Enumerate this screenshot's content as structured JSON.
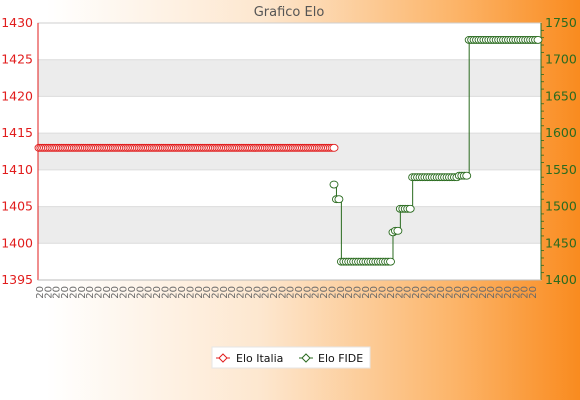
{
  "chart_data": {
    "type": "line",
    "title": "Grafico Elo",
    "xlabel": "",
    "ylabel": "",
    "y_left": {
      "range": [
        1395,
        1430
      ],
      "ticks": [
        1395,
        1400,
        1405,
        1410,
        1415,
        1420,
        1425,
        1430
      ],
      "color": "#e11d1d"
    },
    "y_right": {
      "range": [
        1400,
        1750
      ],
      "ticks": [
        1400,
        1450,
        1500,
        1550,
        1600,
        1650,
        1700,
        1750
      ],
      "color": "#2a6b1f"
    },
    "x_count": 60,
    "x_tick_prefix": "20",
    "grid": true,
    "legend_position": "bottom",
    "series": [
      {
        "name": "Elo Italia",
        "axis": "left",
        "color": "#e11d1d",
        "values": [
          1413,
          1413,
          1413,
          1413,
          1413,
          1413,
          1413,
          1413,
          1413,
          1413,
          1413,
          1413,
          1413,
          1413,
          1413,
          1413,
          1413,
          1413,
          1413,
          1413,
          1413,
          1413,
          1413,
          1413,
          1413,
          1413,
          1413,
          1413,
          1413,
          1413,
          1413,
          1413,
          1413,
          1413,
          1413,
          1413,
          1413,
          1413,
          1413,
          1413,
          1413,
          1413,
          1413,
          1413,
          1413,
          1413,
          1413,
          1413,
          1413,
          1413,
          1413,
          1413,
          1413,
          1413,
          1413,
          1413,
          1413,
          1413,
          1413,
          1413,
          1413,
          1413,
          1413,
          1413,
          1413,
          1413,
          1413,
          1413,
          1413,
          1413,
          1413,
          1413,
          1413,
          1413,
          1413,
          1413,
          1413,
          1413,
          1413,
          1413,
          1413,
          1413,
          1413,
          1413,
          1413,
          1413,
          1413,
          1413,
          1413,
          1413,
          1413,
          1413,
          1413,
          1413,
          1413,
          1413,
          1413,
          1413,
          1413,
          1413,
          1413,
          1413,
          1413,
          1413,
          1413,
          1413,
          1413,
          1413,
          1413,
          1413,
          1413,
          1413,
          1413,
          1413,
          1413,
          1413,
          1413,
          1413,
          1413,
          1413,
          1413,
          1413,
          1413,
          1413,
          1413,
          1413,
          1413,
          1413,
          1413,
          1413,
          1413,
          1413,
          1413,
          1413,
          1413,
          1413,
          1413,
          1413,
          1413,
          1413,
          1413,
          1413,
          1413,
          1413,
          1413,
          1413,
          1413,
          1413,
          1413,
          1413,
          1413,
          1413,
          1413,
          1413,
          1413,
          1413,
          1413,
          1413,
          1413,
          1413
        ]
      },
      {
        "name": "Elo FIDE",
        "axis": "right",
        "color": "#2a6b1f",
        "values": [
          1530,
          1510,
          1510,
          1425,
          1425,
          1425,
          1425,
          1425,
          1425,
          1425,
          1425,
          1425,
          1425,
          1425,
          1425,
          1425,
          1425,
          1425,
          1425,
          1425,
          1425,
          1425,
          1425,
          1425,
          1465,
          1467,
          1467,
          1497,
          1497,
          1497,
          1497,
          1497,
          1540,
          1540,
          1540,
          1540,
          1540,
          1540,
          1540,
          1540,
          1540,
          1540,
          1540,
          1540,
          1540,
          1540,
          1540,
          1540,
          1540,
          1540,
          1540,
          1542,
          1542,
          1542,
          1542,
          1727,
          1727,
          1727,
          1727,
          1727,
          1727,
          1727,
          1727,
          1727,
          1727,
          1727,
          1727,
          1727,
          1727,
          1727,
          1727,
          1727,
          1727,
          1727,
          1727,
          1727,
          1727,
          1727,
          1727,
          1727,
          1727,
          1727,
          1727,
          1727
        ]
      }
    ]
  }
}
